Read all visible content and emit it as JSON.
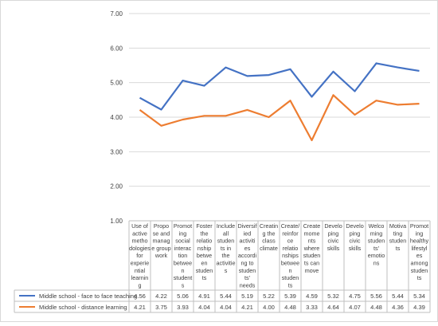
{
  "chart_data": {
    "type": "line",
    "title": "",
    "xlabel": "",
    "ylabel": "",
    "ylim": [
      1,
      7
    ],
    "yticks": [
      "1.00",
      "2.00",
      "3.00",
      "4.00",
      "5.00",
      "6.00",
      "7.00"
    ],
    "grid": true,
    "legend": "data-table-bottom",
    "categories": [
      [
        "Use of",
        "active",
        "metho",
        "dologies",
        "for",
        "experie",
        "ntial",
        "learnin",
        "g"
      ],
      [
        "Propo",
        "se and",
        "manag",
        "e group",
        "work"
      ],
      [
        "Promot",
        "ing",
        "social",
        "interac",
        "tion",
        "betwee",
        "n",
        "student",
        "s"
      ],
      [
        "Foster",
        "the",
        "relatio",
        "nship",
        "betwe",
        "en",
        "studen",
        "ts"
      ],
      [
        "Include",
        "all",
        "studen",
        "ts in",
        "the",
        "activitie",
        "s"
      ],
      [
        "Diversif",
        "ied",
        "activiti",
        "es",
        "accordi",
        "ng to",
        "studen",
        "ts'",
        "needs"
      ],
      [
        "Creatin",
        "g the",
        "class",
        "climate"
      ],
      [
        "Create/",
        "reinfor",
        "ce",
        "relatio",
        "nships",
        "betwee",
        "n",
        "studen",
        "ts"
      ],
      [
        "Create",
        "mome",
        "nts",
        "where",
        "studen",
        "ts can",
        "move"
      ],
      [
        "Develo",
        "ping",
        "civic",
        "skills"
      ],
      [
        "Develo",
        "ping",
        "civic",
        "skills"
      ],
      [
        "Welco",
        "ming",
        "studen",
        "ts'",
        "emotio",
        "ns"
      ],
      [
        "Motiva",
        "ting",
        "studen",
        "ts"
      ],
      [
        "Promot",
        "ing",
        "healthy",
        "lifestyl",
        "es",
        "among",
        "studen",
        "ts"
      ]
    ],
    "series": [
      {
        "name": "Middle school - face to face teaching",
        "color": "#4472C4",
        "values": [
          4.56,
          4.22,
          5.06,
          4.91,
          5.44,
          5.19,
          5.22,
          5.39,
          4.59,
          5.32,
          4.75,
          5.56,
          5.44,
          5.34
        ],
        "labels": [
          "4.56",
          "4.22",
          "5.06",
          "4.91",
          "5.44",
          "5.19",
          "5.22",
          "5.39",
          "4.59",
          "5.32",
          "4.75",
          "5.56",
          "5.44",
          "5.34"
        ]
      },
      {
        "name": "Middle school - distance learning",
        "color": "#ED7D31",
        "values": [
          4.21,
          3.75,
          3.93,
          4.04,
          4.04,
          4.21,
          4.0,
          4.48,
          3.33,
          4.64,
          4.07,
          4.48,
          4.36,
          4.39
        ],
        "labels": [
          "4.21",
          "3.75",
          "3.93",
          "4.04",
          "4.04",
          "4.21",
          "4.00",
          "4.48",
          "3.33",
          "4.64",
          "4.07",
          "4.48",
          "4.36",
          "4.39"
        ]
      }
    ]
  }
}
